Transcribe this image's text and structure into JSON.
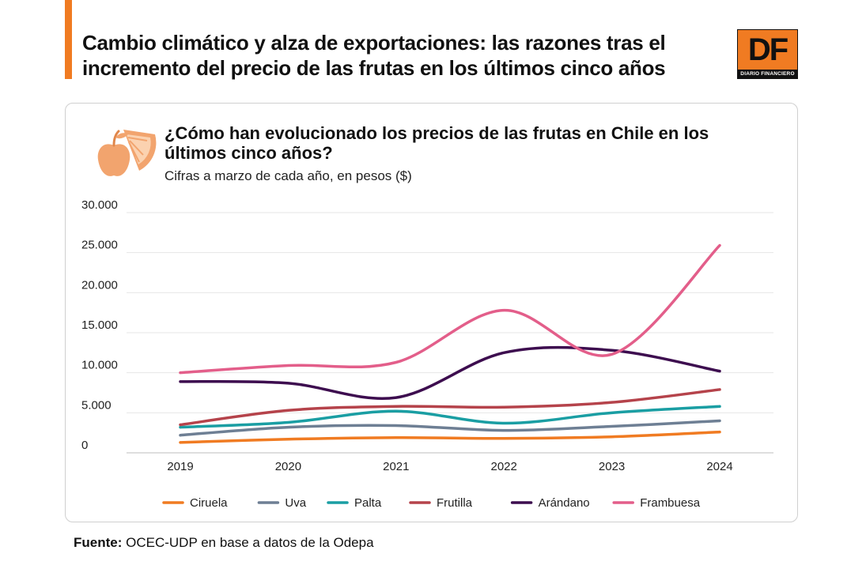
{
  "header": {
    "title": "Cambio climático y alza de exportaciones: las razones tras el incremento del precio de las frutas en los últimos cinco años",
    "logo": {
      "letters": "DF",
      "name": "DIARIO FINANCIERO",
      "color": "#f07b22"
    }
  },
  "footer": {
    "source_label": "Fuente:",
    "source_text": "OCEC-UDP en base a datos de la Odepa"
  },
  "chart_data": {
    "type": "line",
    "title": "¿Cómo han evolucionado los precios de las frutas en Chile en los últimos cinco años?",
    "subtitle": "Cifras a marzo de cada año, en pesos ($)",
    "icon": "fruit-icon",
    "x": [
      "2019",
      "2020",
      "2021",
      "2022",
      "2023",
      "2024"
    ],
    "ylim": [
      0,
      30000
    ],
    "yticks": [
      0,
      5000,
      10000,
      15000,
      20000,
      25000,
      30000
    ],
    "ytick_labels": [
      "0",
      "5.000",
      "10.000",
      "15.000",
      "20.000",
      "25.000",
      "30.000"
    ],
    "grid": true,
    "legend_position": "bottom",
    "series": [
      {
        "name": "Ciruela",
        "color": "#f07b22",
        "values": [
          1300,
          1700,
          1900,
          1800,
          2000,
          2600
        ]
      },
      {
        "name": "Uva",
        "color": "#6e7f94",
        "values": [
          2200,
          3200,
          3400,
          2800,
          3300,
          4000
        ]
      },
      {
        "name": "Palta",
        "color": "#1a9ea3",
        "values": [
          3200,
          3800,
          5200,
          3700,
          5000,
          5800
        ]
      },
      {
        "name": "Frutilla",
        "color": "#b5434b",
        "values": [
          3500,
          5300,
          5800,
          5700,
          6300,
          7900
        ]
      },
      {
        "name": "Arándano",
        "color": "#3d0d4f",
        "values": [
          8900,
          8700,
          6900,
          12500,
          12800,
          10200
        ]
      },
      {
        "name": "Frambuesa",
        "color": "#e35e8a",
        "values": [
          10000,
          10900,
          11300,
          17800,
          12300,
          25900
        ]
      }
    ]
  }
}
